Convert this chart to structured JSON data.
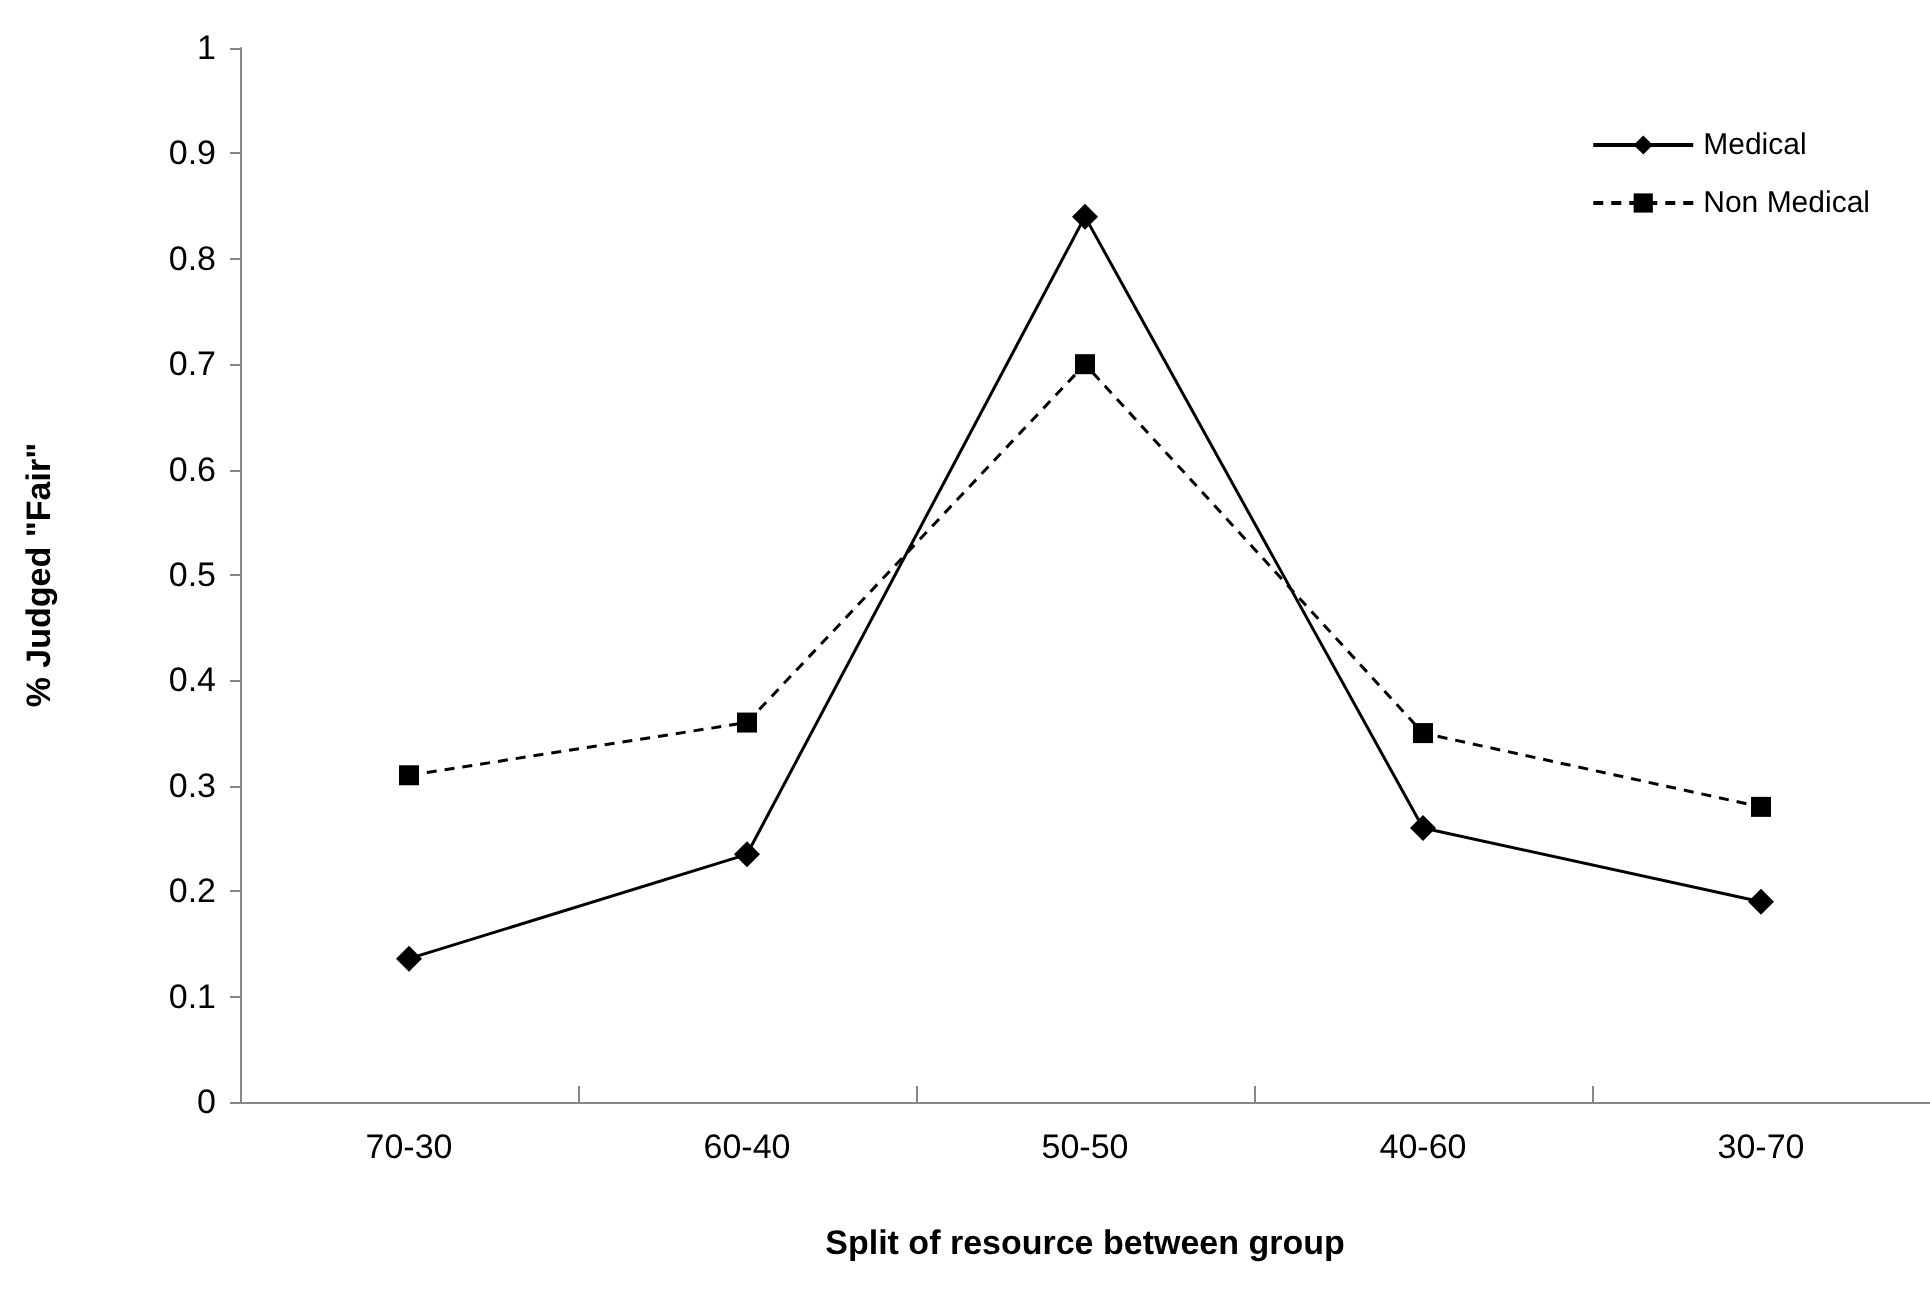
{
  "chart_data": {
    "type": "line",
    "xlabel": "Split of resource between group",
    "ylabel": "% Judged \"Fair\"",
    "categories": [
      "70-30",
      "60-40",
      "50-50",
      "40-60",
      "30-70"
    ],
    "series": [
      {
        "name": "Medical",
        "color": "#000000",
        "values": [
          0.136,
          0.235,
          0.84,
          0.26,
          0.19
        ],
        "marker": "diamond",
        "line_style": "solid"
      },
      {
        "name": "Non Medical",
        "color": "#000000",
        "values": [
          0.31,
          0.36,
          0.7,
          0.35,
          0.28
        ],
        "marker": "square",
        "line_style": "dashed"
      }
    ],
    "ylim": [
      0,
      1
    ],
    "yticks": [
      0,
      0.1,
      0.2,
      0.3,
      0.4,
      0.5,
      0.6,
      0.7,
      0.8,
      0.9,
      1
    ],
    "grid": false,
    "legend": "top right"
  }
}
